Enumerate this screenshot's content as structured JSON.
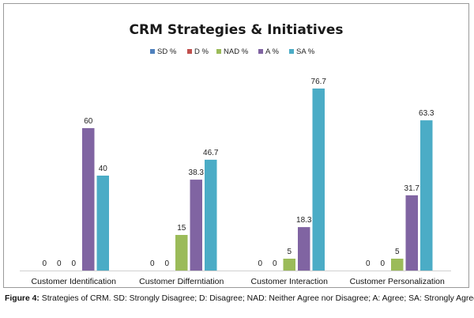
{
  "chart_data": {
    "type": "bar",
    "title": "CRM Strategies & Initiatives",
    "categories": [
      "Customer Identification",
      "Customer Differntiation",
      "Customer Interaction",
      "Customer Personalization"
    ],
    "series": [
      {
        "name": "SD %",
        "color": "#4f81bd",
        "values": [
          0,
          0,
          0,
          0
        ]
      },
      {
        "name": "D %",
        "color": "#c0504d",
        "values": [
          0,
          0,
          0,
          0
        ]
      },
      {
        "name": "NAD %",
        "color": "#9bbb59",
        "values": [
          0,
          15,
          5,
          5
        ]
      },
      {
        "name": "A %",
        "color": "#8064a2",
        "values": [
          60,
          38.3,
          18.3,
          31.7
        ]
      },
      {
        "name": "SA %",
        "color": "#4bacc6",
        "values": [
          40,
          46.7,
          76.7,
          63.3
        ]
      }
    ],
    "ylim": [
      0,
      80
    ],
    "legend_position": "top",
    "grid": false,
    "xlabel": "",
    "ylabel": ""
  },
  "caption": {
    "label": "Figure 4:",
    "text": " Strategies of CRM. SD: Strongly Disagree; D: Disagree; NAD: Neither Agree nor Disagree; A: Agree; SA: Strongly Agree."
  }
}
